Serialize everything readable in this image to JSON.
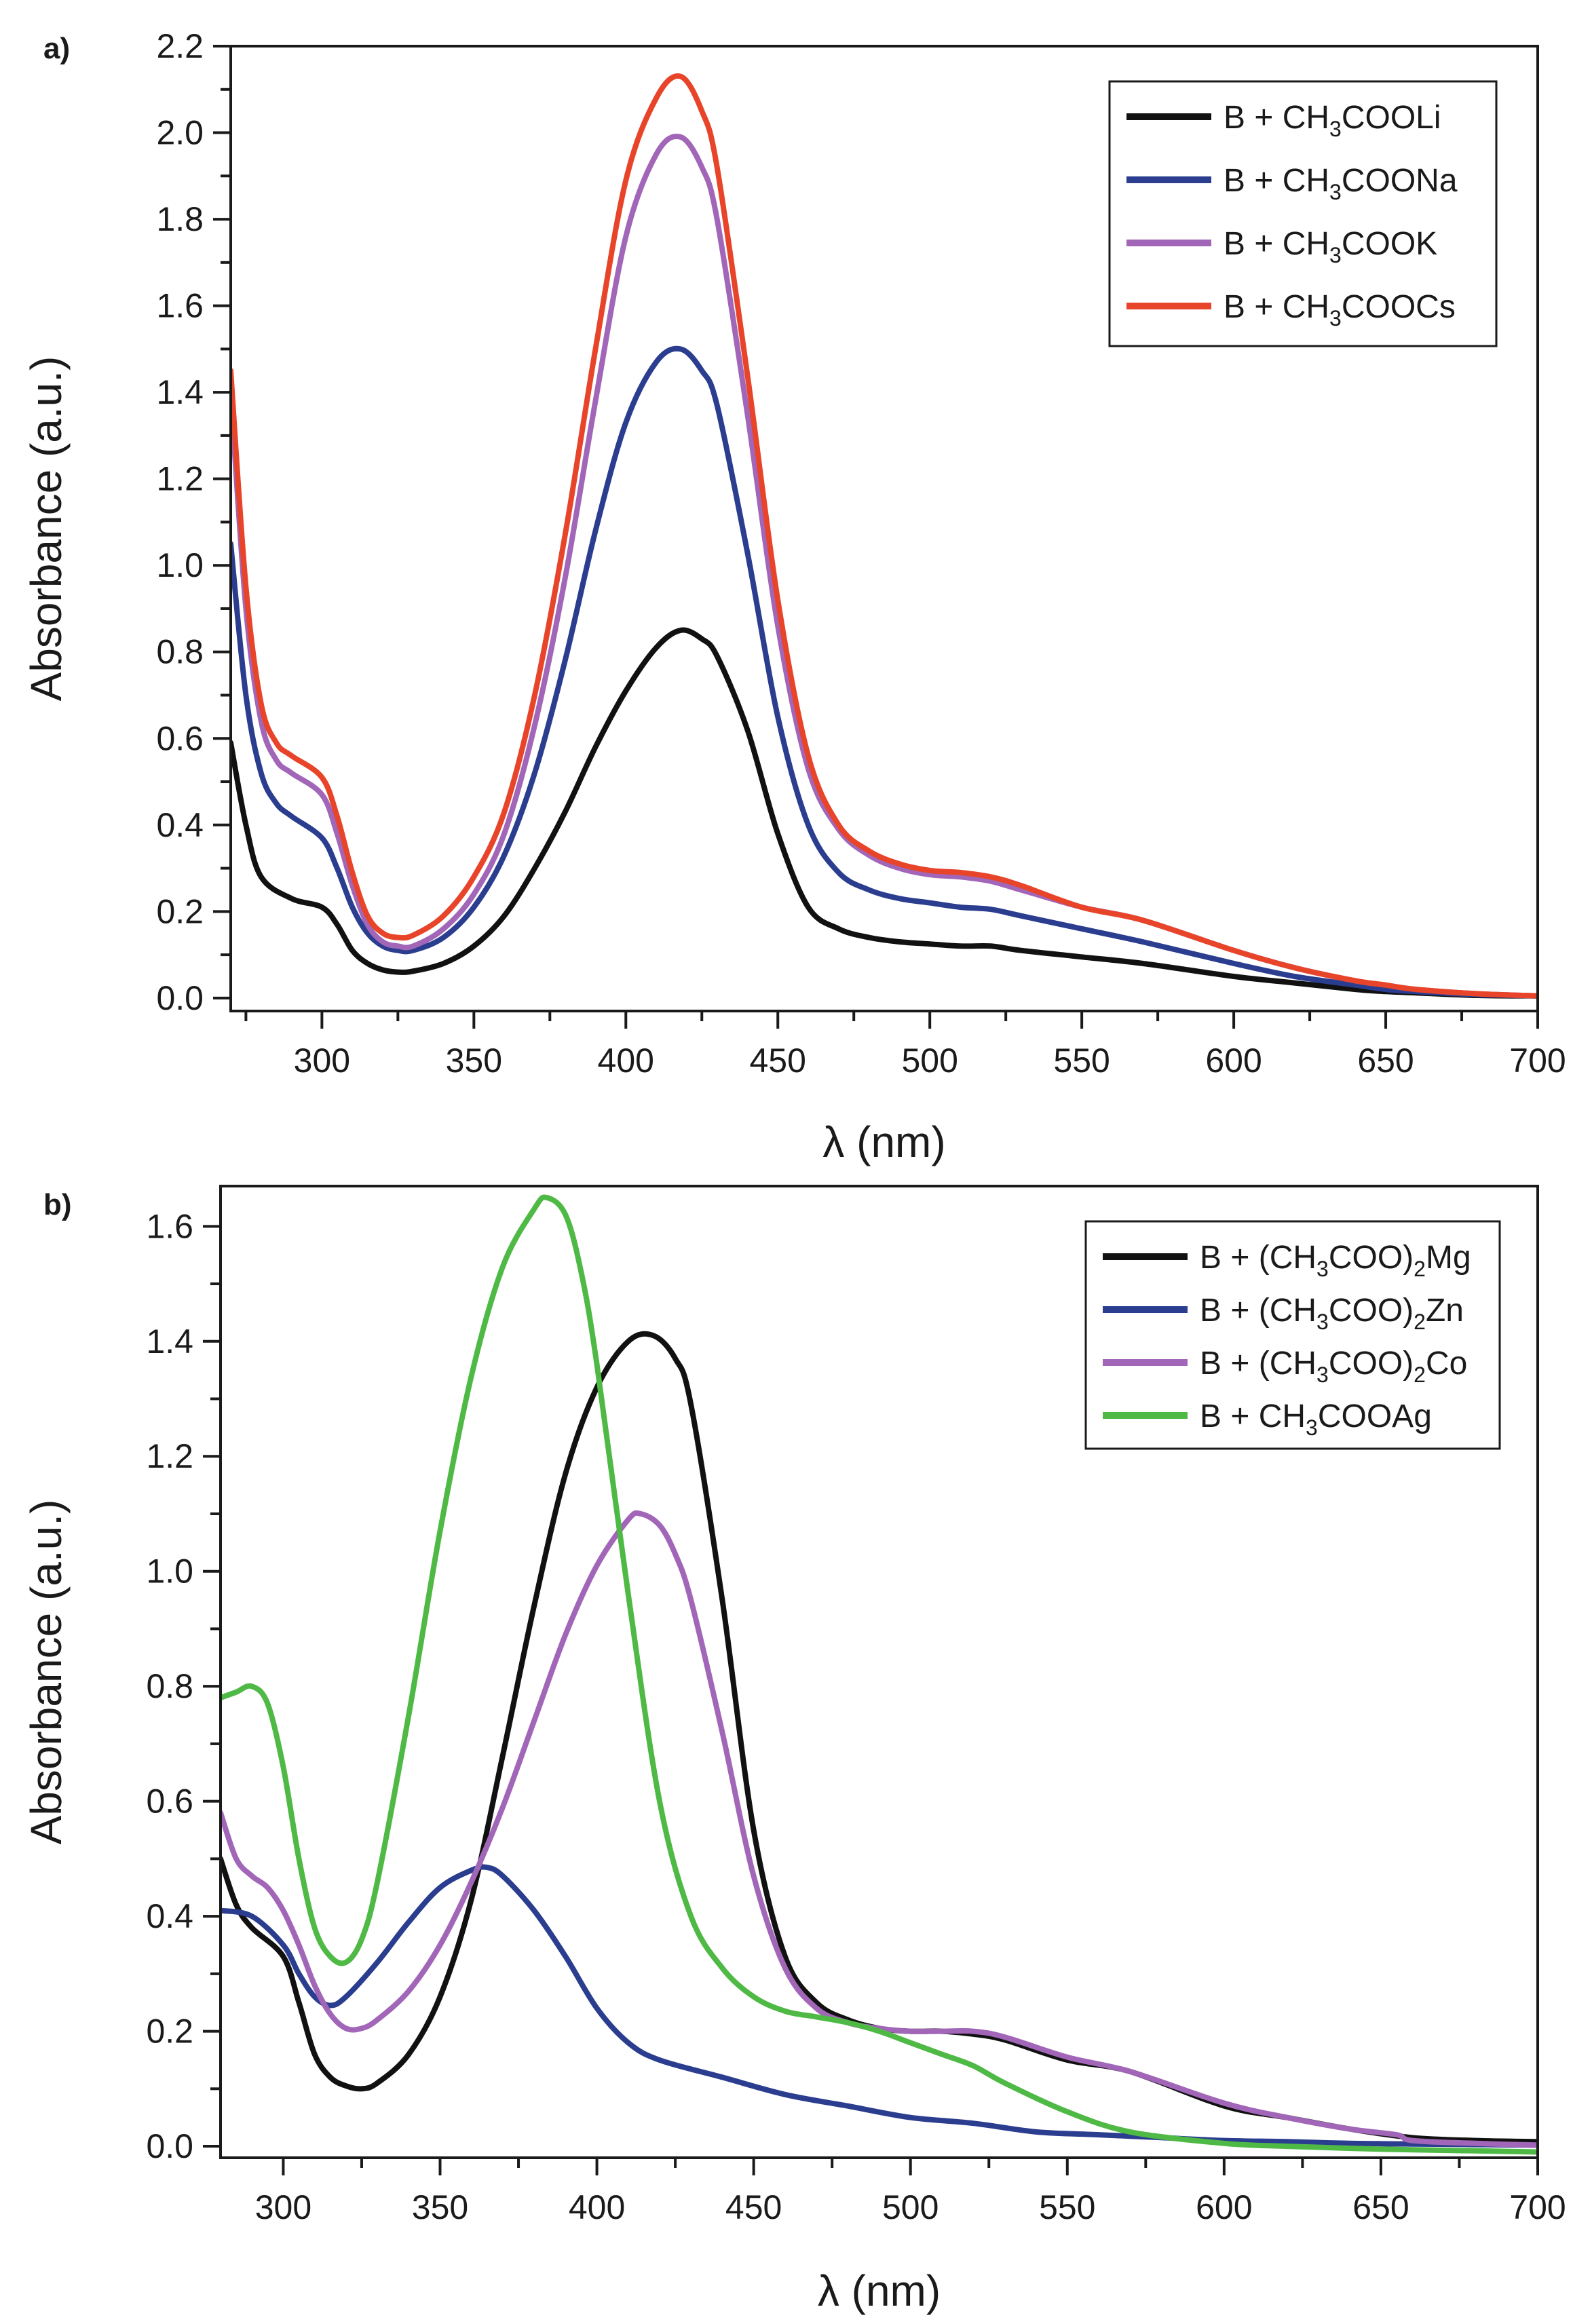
{
  "chart_data": [
    {
      "type": "line",
      "panel_label": "a)",
      "xlabel": "λ (nm)",
      "ylabel": "Absorbance (a.u.)",
      "xlim": [
        270,
        700
      ],
      "ylim": [
        -0.03,
        2.2
      ],
      "xticks": [
        300,
        350,
        400,
        450,
        500,
        550,
        600,
        650,
        700
      ],
      "yticks": [
        0.0,
        0.2,
        0.4,
        0.6,
        0.8,
        1.0,
        1.2,
        1.4,
        1.6,
        1.8,
        2.0,
        2.2
      ],
      "ytick_labels": [
        "0.0",
        "0.2",
        "0.4",
        "0.6",
        "0.8",
        "1.0",
        "1.2",
        "1.4",
        "1.6",
        "1.8",
        "2.0",
        "2.2"
      ],
      "legend_position": "top-right",
      "grid": false,
      "series": [
        {
          "name": "B + CH3COOLi",
          "legend": {
            "pre": "B + CH",
            "sub": "3",
            "post": "COOLi"
          },
          "color": "#111111",
          "x": [
            270,
            275,
            280,
            290,
            300,
            305,
            310,
            315,
            320,
            325,
            330,
            340,
            350,
            360,
            370,
            380,
            390,
            400,
            410,
            418,
            425,
            430,
            440,
            450,
            460,
            470,
            480,
            490,
            500,
            510,
            520,
            530,
            550,
            570,
            600,
            620,
            640,
            650,
            660,
            680,
            700
          ],
          "y": [
            0.59,
            0.4,
            0.28,
            0.23,
            0.21,
            0.17,
            0.11,
            0.08,
            0.065,
            0.06,
            0.062,
            0.08,
            0.12,
            0.19,
            0.3,
            0.43,
            0.58,
            0.71,
            0.81,
            0.85,
            0.83,
            0.79,
            0.62,
            0.38,
            0.21,
            0.16,
            0.14,
            0.13,
            0.125,
            0.12,
            0.12,
            0.11,
            0.095,
            0.08,
            0.05,
            0.035,
            0.02,
            0.015,
            0.012,
            0.006,
            0.005
          ]
        },
        {
          "name": "B + CH3COONa",
          "legend": {
            "pre": "B + CH",
            "sub": "3",
            "post": "COONa"
          },
          "color": "#2a3d8f",
          "x": [
            270,
            275,
            280,
            285,
            290,
            300,
            305,
            310,
            315,
            320,
            325,
            330,
            340,
            350,
            360,
            370,
            380,
            390,
            400,
            410,
            418,
            425,
            430,
            440,
            450,
            460,
            470,
            480,
            490,
            500,
            510,
            520,
            530,
            550,
            570,
            600,
            620,
            640,
            650,
            660,
            680,
            700
          ],
          "y": [
            1.05,
            0.7,
            0.52,
            0.45,
            0.42,
            0.37,
            0.3,
            0.21,
            0.15,
            0.12,
            0.11,
            0.11,
            0.14,
            0.21,
            0.33,
            0.52,
            0.78,
            1.08,
            1.33,
            1.47,
            1.5,
            1.45,
            1.37,
            1.03,
            0.65,
            0.4,
            0.29,
            0.25,
            0.23,
            0.22,
            0.21,
            0.205,
            0.19,
            0.16,
            0.13,
            0.08,
            0.05,
            0.03,
            0.02,
            0.015,
            0.008,
            0.005
          ]
        },
        {
          "name": "B + CH3COOK",
          "legend": {
            "pre": "B + CH",
            "sub": "3",
            "post": "COOK"
          },
          "color": "#a266b8",
          "x": [
            270,
            275,
            280,
            285,
            290,
            300,
            305,
            310,
            315,
            320,
            325,
            330,
            340,
            350,
            360,
            370,
            380,
            390,
            400,
            410,
            418,
            425,
            430,
            440,
            450,
            460,
            470,
            480,
            490,
            500,
            510,
            520,
            530,
            550,
            570,
            600,
            620,
            640,
            650,
            660,
            680,
            700
          ],
          "y": [
            1.4,
            0.9,
            0.64,
            0.55,
            0.52,
            0.47,
            0.38,
            0.26,
            0.17,
            0.13,
            0.12,
            0.12,
            0.16,
            0.24,
            0.38,
            0.63,
            0.97,
            1.38,
            1.76,
            1.95,
            1.99,
            1.92,
            1.8,
            1.35,
            0.86,
            0.53,
            0.39,
            0.33,
            0.3,
            0.285,
            0.28,
            0.27,
            0.25,
            0.21,
            0.18,
            0.11,
            0.07,
            0.04,
            0.03,
            0.02,
            0.01,
            0.005
          ]
        },
        {
          "name": "B + CH3COOCs",
          "legend": {
            "pre": "B + CH",
            "sub": "3",
            "post": "COOCs"
          },
          "color": "#e8442a",
          "x": [
            270,
            275,
            280,
            285,
            290,
            300,
            305,
            310,
            315,
            320,
            325,
            330,
            340,
            350,
            360,
            370,
            380,
            390,
            400,
            410,
            418,
            425,
            430,
            440,
            450,
            460,
            470,
            480,
            490,
            500,
            510,
            520,
            530,
            550,
            570,
            600,
            620,
            640,
            650,
            660,
            680,
            700
          ],
          "y": [
            1.45,
            0.95,
            0.68,
            0.59,
            0.56,
            0.51,
            0.42,
            0.29,
            0.19,
            0.15,
            0.14,
            0.145,
            0.19,
            0.28,
            0.43,
            0.7,
            1.07,
            1.5,
            1.89,
            2.08,
            2.13,
            2.05,
            1.92,
            1.44,
            0.92,
            0.56,
            0.4,
            0.34,
            0.31,
            0.295,
            0.29,
            0.28,
            0.26,
            0.21,
            0.18,
            0.11,
            0.07,
            0.04,
            0.03,
            0.02,
            0.01,
            0.005
          ]
        }
      ]
    },
    {
      "type": "line",
      "panel_label": "b)",
      "xlabel": "λ (nm)",
      "ylabel": "Absorbance (a.u.)",
      "xlim": [
        280,
        700
      ],
      "ylim": [
        -0.02,
        1.67
      ],
      "xticks": [
        300,
        350,
        400,
        450,
        500,
        550,
        600,
        650,
        700
      ],
      "yticks": [
        0.0,
        0.2,
        0.4,
        0.6,
        0.8,
        1.0,
        1.2,
        1.4,
        1.6
      ],
      "ytick_labels": [
        "0.0",
        "0.2",
        "0.4",
        "0.6",
        "0.8",
        "1.0",
        "1.2",
        "1.4",
        "1.6"
      ],
      "legend_position": "top-right",
      "grid": false,
      "series": [
        {
          "name": "B + (CH3COO)2Mg",
          "legend": {
            "pre": "B + (CH",
            "sub": "3",
            "mid": "COO)",
            "sub2": "2",
            "post": "Mg"
          },
          "color": "#111111",
          "x": [
            280,
            285,
            290,
            300,
            305,
            310,
            315,
            320,
            325,
            330,
            340,
            350,
            360,
            370,
            380,
            390,
            400,
            410,
            418,
            425,
            430,
            440,
            450,
            460,
            470,
            480,
            490,
            500,
            510,
            520,
            530,
            550,
            570,
            600,
            620,
            640,
            660,
            680,
            700
          ],
          "y": [
            0.5,
            0.42,
            0.38,
            0.33,
            0.25,
            0.16,
            0.12,
            0.105,
            0.1,
            0.11,
            0.16,
            0.26,
            0.43,
            0.68,
            0.94,
            1.17,
            1.32,
            1.4,
            1.41,
            1.37,
            1.29,
            0.95,
            0.55,
            0.33,
            0.25,
            0.22,
            0.205,
            0.2,
            0.2,
            0.195,
            0.185,
            0.15,
            0.13,
            0.07,
            0.05,
            0.03,
            0.015,
            0.01,
            0.008
          ]
        },
        {
          "name": "B + (CH3COO)2Zn",
          "legend": {
            "pre": "B + (CH",
            "sub": "3",
            "mid": "COO)",
            "sub2": "2",
            "post": "Zn"
          },
          "color": "#2a3d8f",
          "x": [
            280,
            290,
            300,
            305,
            310,
            315,
            320,
            330,
            340,
            350,
            360,
            365,
            370,
            380,
            390,
            400,
            410,
            420,
            440,
            460,
            480,
            500,
            520,
            540,
            560,
            580,
            600,
            620,
            640,
            660,
            700
          ],
          "y": [
            0.41,
            0.4,
            0.35,
            0.3,
            0.26,
            0.245,
            0.26,
            0.32,
            0.39,
            0.45,
            0.48,
            0.485,
            0.47,
            0.41,
            0.33,
            0.24,
            0.18,
            0.15,
            0.12,
            0.09,
            0.07,
            0.05,
            0.04,
            0.025,
            0.02,
            0.015,
            0.01,
            0.008,
            0.005,
            0.004,
            0.002
          ]
        },
        {
          "name": "B + (CH3COO)2Co",
          "legend": {
            "pre": "B + (CH",
            "sub": "3",
            "mid": "COO)",
            "sub2": "2",
            "post": "Co"
          },
          "color": "#a266b8",
          "x": [
            280,
            285,
            290,
            295,
            300,
            305,
            310,
            315,
            320,
            325,
            330,
            340,
            350,
            360,
            370,
            380,
            390,
            400,
            410,
            414,
            420,
            425,
            430,
            440,
            450,
            460,
            470,
            480,
            490,
            500,
            510,
            520,
            530,
            550,
            570,
            600,
            620,
            640,
            655,
            660,
            680,
            700
          ],
          "y": [
            0.58,
            0.5,
            0.47,
            0.45,
            0.41,
            0.35,
            0.28,
            0.23,
            0.205,
            0.205,
            0.22,
            0.27,
            0.35,
            0.46,
            0.59,
            0.74,
            0.89,
            1.01,
            1.09,
            1.1,
            1.08,
            1.03,
            0.95,
            0.72,
            0.47,
            0.31,
            0.24,
            0.215,
            0.205,
            0.2,
            0.2,
            0.2,
            0.19,
            0.155,
            0.13,
            0.075,
            0.05,
            0.03,
            0.02,
            0.01,
            0.005,
            0.002
          ]
        },
        {
          "name": "B + CH3COOAg",
          "legend": {
            "pre": "B + CH",
            "sub": "3",
            "post": "COOAg"
          },
          "color": "#4fb945",
          "x": [
            280,
            285,
            290,
            295,
            300,
            305,
            310,
            315,
            320,
            325,
            330,
            340,
            350,
            360,
            370,
            380,
            384,
            390,
            395,
            400,
            410,
            420,
            430,
            440,
            450,
            460,
            470,
            480,
            490,
            500,
            510,
            520,
            530,
            550,
            570,
            600,
            620,
            650,
            680,
            700
          ],
          "y": [
            0.78,
            0.79,
            0.8,
            0.77,
            0.66,
            0.5,
            0.38,
            0.33,
            0.32,
            0.36,
            0.46,
            0.75,
            1.07,
            1.34,
            1.53,
            1.63,
            1.65,
            1.62,
            1.52,
            1.36,
            0.96,
            0.6,
            0.4,
            0.31,
            0.26,
            0.235,
            0.225,
            0.215,
            0.2,
            0.18,
            0.16,
            0.14,
            0.11,
            0.06,
            0.025,
            0.005,
            0.0,
            -0.005,
            -0.008,
            -0.01
          ]
        }
      ]
    }
  ]
}
